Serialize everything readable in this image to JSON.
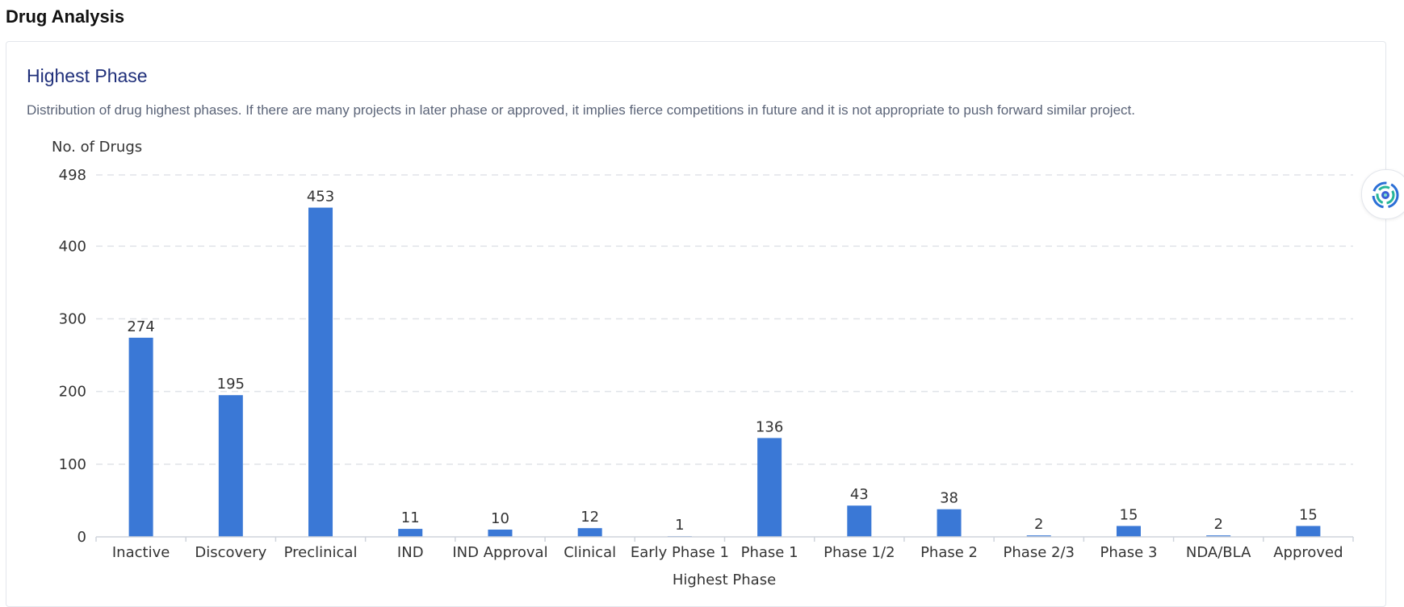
{
  "page": {
    "title": "Drug Analysis"
  },
  "card": {
    "title": "Highest Phase",
    "description": "Distribution of drug highest phases. If there are many projects in later phase or approved, it implies fierce competitions in future and it is not appropriate to push forward similar project."
  },
  "assistant": {
    "icon": "swirl-logo-icon"
  },
  "colors": {
    "bar": "#3a78d6",
    "title": "#1f2f7a",
    "grid": "#e0e3e8"
  },
  "chart_data": {
    "type": "bar",
    "xlabel": "Highest Phase",
    "ylabel": "No. of Drugs",
    "ylim": [
      0,
      498
    ],
    "yticks": [
      0,
      100,
      200,
      300,
      400,
      498
    ],
    "grid": true,
    "categories": [
      "Inactive",
      "Discovery",
      "Preclinical",
      "IND",
      "IND Approval",
      "Clinical",
      "Early Phase 1",
      "Phase 1",
      "Phase 1/2",
      "Phase 2",
      "Phase 2/3",
      "Phase 3",
      "NDA/BLA",
      "Approved"
    ],
    "values": [
      274,
      195,
      453,
      11,
      10,
      12,
      1,
      136,
      43,
      38,
      2,
      15,
      2,
      15
    ]
  }
}
